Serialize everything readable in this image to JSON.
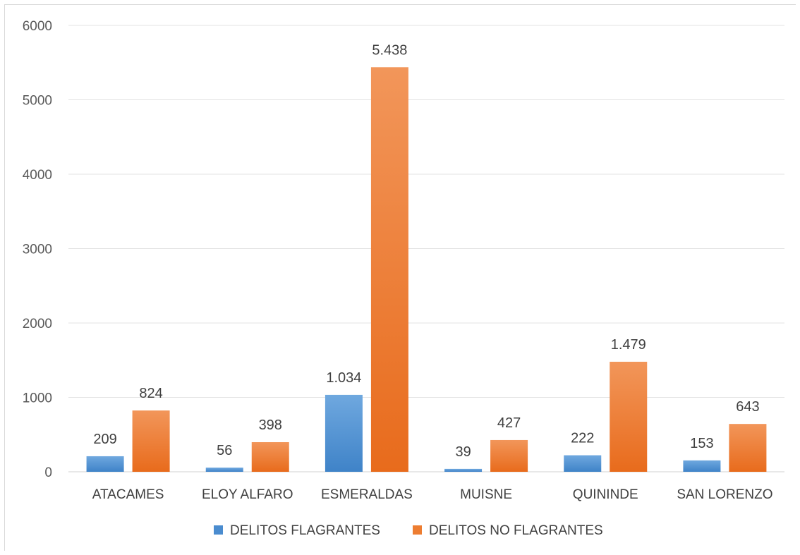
{
  "chart_data": {
    "type": "bar",
    "categories": [
      "ATACAMES",
      "ELOY ALFARO",
      "ESMERALDAS",
      "MUISNE",
      "QUININDE",
      "SAN LORENZO"
    ],
    "series": [
      {
        "name": "DELITOS FLAGRANTES",
        "values": [
          209,
          56,
          1034,
          39,
          222,
          153
        ],
        "labels": [
          "209",
          "56",
          "1.034",
          "39",
          "222",
          "153"
        ],
        "color": "#4a8ccf"
      },
      {
        "name": "DELITOS NO FLAGRANTES",
        "values": [
          824,
          398,
          5438,
          427,
          1479,
          643
        ],
        "labels": [
          "824",
          "398",
          "5.438",
          "427",
          "1.479",
          "643"
        ],
        "color": "#ed7d31"
      }
    ],
    "ylim": [
      0,
      6000
    ],
    "yticks": [
      0,
      1000,
      2000,
      3000,
      4000,
      5000,
      6000
    ],
    "grid": true,
    "legend": "bottom"
  }
}
